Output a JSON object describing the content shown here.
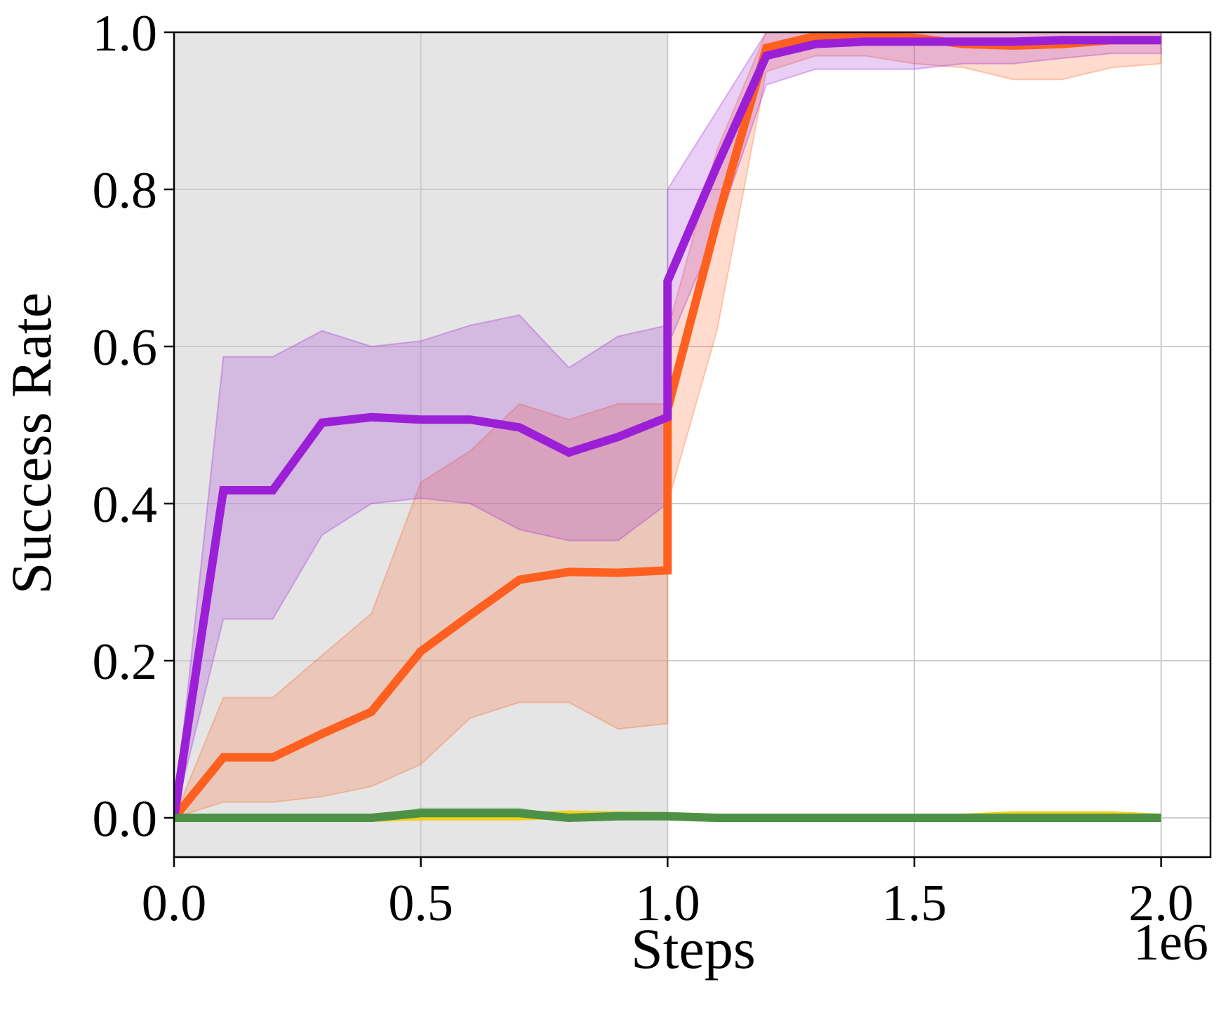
{
  "chart_data": {
    "type": "line",
    "title": "",
    "xlabel": "Steps",
    "ylabel": "Success Rate",
    "x_offset_label": "1e6",
    "xlim": [
      0,
      2.1
    ],
    "ylim": [
      -0.05,
      1.0
    ],
    "x_ticks": [
      0.0,
      0.5,
      1.0,
      1.5,
      2.0
    ],
    "x_tick_labels": [
      "0.0",
      "0.5",
      "1.0",
      "1.5",
      "2.0"
    ],
    "y_ticks": [
      0.0,
      0.2,
      0.4,
      0.6,
      0.8,
      1.0
    ],
    "y_tick_labels": [
      "0.0",
      "0.2",
      "0.4",
      "0.6",
      "0.8",
      "1.0"
    ],
    "grid": true,
    "shaded_region": {
      "x_start": 0.0,
      "x_end": 1.0,
      "color": "#e5e5e5"
    },
    "series": [
      {
        "color": "#ff5f1f",
        "x": [
          0,
          0.1,
          0.2,
          0.3,
          0.4,
          0.5,
          0.6,
          0.7,
          0.8,
          0.9,
          1.0,
          1.0,
          1.1,
          1.2,
          1.3,
          1.4,
          1.5,
          1.6,
          1.7,
          1.8,
          1.9,
          2.0
        ],
        "y": [
          0.0,
          0.077,
          0.077,
          0.107,
          0.135,
          0.212,
          0.258,
          0.303,
          0.313,
          0.312,
          0.315,
          0.52,
          0.76,
          0.98,
          0.995,
          0.995,
          0.993,
          0.985,
          0.983,
          0.985,
          0.99,
          0.99
        ],
        "lower": [
          0.0,
          0.02,
          0.02,
          0.027,
          0.04,
          0.068,
          0.127,
          0.147,
          0.147,
          0.113,
          0.12,
          0.4,
          0.62,
          0.95,
          0.97,
          0.97,
          0.96,
          0.955,
          0.94,
          0.94,
          0.955,
          0.96
        ],
        "upper": [
          0.0,
          0.153,
          0.153,
          0.207,
          0.26,
          0.427,
          0.467,
          0.527,
          0.507,
          0.527,
          0.527,
          0.62,
          0.85,
          1.0,
          1.0,
          1.0,
          1.0,
          1.0,
          1.0,
          1.0,
          1.0,
          1.0
        ]
      },
      {
        "color": "#9b1fd6",
        "x": [
          0,
          0.1,
          0.2,
          0.3,
          0.4,
          0.5,
          0.6,
          0.7,
          0.8,
          0.9,
          1.0,
          1.0,
          1.1,
          1.2,
          1.3,
          1.4,
          1.5,
          1.6,
          1.7,
          1.8,
          1.9,
          2.0
        ],
        "y": [
          0.0,
          0.417,
          0.417,
          0.503,
          0.51,
          0.507,
          0.507,
          0.497,
          0.465,
          0.485,
          0.51,
          0.683,
          0.83,
          0.97,
          0.985,
          0.988,
          0.988,
          0.988,
          0.988,
          0.99,
          0.99,
          0.99
        ],
        "lower": [
          0.0,
          0.253,
          0.253,
          0.36,
          0.4,
          0.407,
          0.4,
          0.367,
          0.353,
          0.353,
          0.4,
          0.6,
          0.75,
          0.933,
          0.953,
          0.953,
          0.953,
          0.96,
          0.96,
          0.967,
          0.973,
          0.973
        ],
        "upper": [
          0.0,
          0.587,
          0.587,
          0.62,
          0.6,
          0.607,
          0.627,
          0.64,
          0.573,
          0.613,
          0.627,
          0.8,
          0.9,
          1.0,
          1.0,
          1.0,
          1.0,
          1.0,
          1.0,
          1.0,
          1.0,
          1.0
        ]
      },
      {
        "color": "#f2d21b",
        "x": [
          0,
          0.1,
          0.2,
          0.3,
          0.4,
          0.5,
          0.6,
          0.7,
          0.8,
          0.9,
          1.0,
          1.1,
          1.2,
          1.3,
          1.4,
          1.5,
          1.6,
          1.7,
          1.8,
          1.9,
          2.0
        ],
        "y": [
          0,
          0,
          0,
          0,
          0,
          0.002,
          0.002,
          0.002,
          0.004,
          0.003,
          0.002,
          0,
          0,
          0,
          0,
          0,
          0,
          0.003,
          0.003,
          0.003,
          0
        ],
        "lower": [
          0,
          0,
          0,
          0,
          0,
          0,
          0,
          0,
          0,
          0,
          0,
          0,
          0,
          0,
          0,
          0,
          0,
          0,
          0,
          0,
          0
        ],
        "upper": [
          0,
          0,
          0,
          0,
          0,
          0.007,
          0.007,
          0.007,
          0.008,
          0.007,
          0.006,
          0,
          0,
          0,
          0,
          0,
          0,
          0.007,
          0.007,
          0.007,
          0
        ]
      },
      {
        "color": "#4d9146",
        "x": [
          0,
          0.1,
          0.2,
          0.3,
          0.4,
          0.5,
          0.6,
          0.7,
          0.8,
          0.9,
          1.0,
          1.1,
          1.2,
          1.3,
          1.4,
          1.5,
          1.6,
          1.7,
          1.8,
          1.9,
          2.0
        ],
        "y": [
          0,
          0,
          0,
          0,
          0,
          0.006,
          0.006,
          0.006,
          0,
          0.002,
          0.002,
          0,
          0,
          0,
          0,
          0,
          0,
          0,
          0,
          0,
          0
        ],
        "lower": [
          0,
          0,
          0,
          0,
          0,
          0,
          0,
          0,
          0,
          0,
          0,
          0,
          0,
          0,
          0,
          0,
          0,
          0,
          0,
          0,
          0
        ],
        "upper": [
          0,
          0,
          0,
          0,
          0,
          0.012,
          0.012,
          0.012,
          0,
          0.004,
          0.004,
          0,
          0,
          0,
          0,
          0,
          0,
          0,
          0,
          0,
          0
        ]
      }
    ]
  }
}
